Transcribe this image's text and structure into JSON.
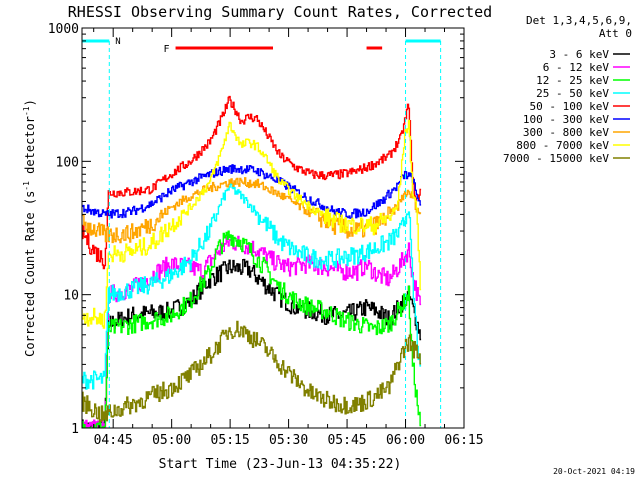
{
  "chart_data": {
    "type": "line",
    "title": "RHESSI Observing Summary Count Rates, Corrected",
    "xlabel": "Start Time (23-Jun-13 04:35:22)",
    "ylabel_main": "Corrected Count Rate (s",
    "ylabel_sup1": "-1",
    "ylabel_mid": " detector",
    "ylabel_sup2": "-1",
    "ylabel_end": ")",
    "y_scale": "log",
    "ylim": [
      1,
      1000
    ],
    "xlim": [
      "04:37:00",
      "06:15:00"
    ],
    "x_ticks": [
      "04:45",
      "05:00",
      "05:15",
      "05:30",
      "05:45",
      "06:00",
      "06:15"
    ],
    "x_tick_minutes": [
      285,
      300,
      315,
      330,
      345,
      360,
      375
    ],
    "x_range_minutes": [
      277,
      375
    ],
    "y_ticks": [
      "1",
      "10",
      "100",
      "1000"
    ],
    "y_tick_values": [
      1,
      10,
      100,
      1000
    ],
    "legend_header": [
      "Det 1,3,4,5,6,9,",
      "Att 0"
    ],
    "legend_placement": "right",
    "flags": {
      "N_label": "N",
      "F_label": "F",
      "night_color": "#00ffff",
      "flare_color": "#ff0000",
      "night_intervals": [
        [
          "04:35",
          "04:44"
        ],
        [
          "06:00",
          "06:09"
        ]
      ],
      "flare_intervals": [
        [
          "05:01",
          "05:26"
        ],
        [
          "05:50",
          "05:54"
        ]
      ],
      "saa_lines": [
        "04:44",
        "06:00",
        "06:09"
      ]
    },
    "series": [
      {
        "name": "3 - 6 keV",
        "color": "#000000",
        "x": [
          277,
          283,
          284,
          290,
          300,
          305,
          310,
          315,
          320,
          324,
          328,
          332,
          336,
          340,
          344,
          348,
          350,
          353,
          356,
          359,
          361,
          362,
          364
        ],
        "y": [
          1,
          1,
          6,
          7,
          7.5,
          9,
          13,
          16,
          15.5,
          12,
          9.5,
          8,
          7.5,
          7,
          7,
          7.5,
          8,
          7.5,
          6.5,
          8.5,
          10,
          8,
          5
        ]
      },
      {
        "name": "6 - 12 keV",
        "color": "#ff00ff",
        "x": [
          277,
          283,
          284,
          290,
          295,
          300,
          305,
          308,
          312,
          315,
          318,
          322,
          326,
          330,
          335,
          340,
          344,
          348,
          350,
          353,
          356,
          359,
          361,
          362,
          364
        ],
        "y": [
          1,
          1,
          10,
          11,
          14,
          17,
          16,
          15,
          21,
          25,
          24,
          22,
          18,
          16,
          17,
          16,
          15,
          15,
          17,
          14,
          13,
          17,
          22,
          14,
          8
        ]
      },
      {
        "name": "12 - 25 keV",
        "color": "#00ff00",
        "x": [
          277,
          283,
          284,
          290,
          300,
          305,
          310,
          312,
          315,
          318,
          320,
          324,
          328,
          332,
          336,
          340,
          344,
          348,
          352,
          356,
          359,
          361,
          362,
          364
        ],
        "y": [
          1,
          1,
          5.5,
          6,
          7,
          9,
          15,
          22,
          28,
          25,
          22,
          16,
          11,
          9,
          8,
          7.5,
          6.5,
          6,
          5.5,
          6,
          8,
          10,
          3,
          1
        ]
      },
      {
        "name": "25 - 50 keV",
        "color": "#00ffff",
        "x": [
          277,
          280,
          283,
          284,
          290,
          295,
          300,
          305,
          310,
          313,
          315,
          318,
          320,
          324,
          328,
          332,
          336,
          340,
          344,
          348,
          352,
          356,
          359,
          361,
          362,
          364
        ],
        "y": [
          2.3,
          2.3,
          2.3,
          10,
          11,
          12,
          14,
          18,
          30,
          50,
          65,
          55,
          48,
          35,
          25,
          21,
          19,
          18,
          19,
          20,
          22,
          25,
          30,
          45,
          12,
          2.5
        ]
      },
      {
        "name": "50 - 100 keV",
        "color": "#ff0000",
        "x": [
          277,
          280,
          283,
          284,
          290,
          295,
          300,
          305,
          310,
          313,
          315,
          317,
          318,
          320,
          322,
          324,
          328,
          332,
          336,
          340,
          344,
          348,
          352,
          356,
          359,
          360,
          361,
          362,
          363,
          364
        ],
        "y": [
          30,
          22,
          18,
          58,
          59,
          62,
          80,
          100,
          140,
          210,
          290,
          230,
          200,
          215,
          210,
          170,
          110,
          90,
          80,
          78,
          80,
          85,
          95,
          110,
          150,
          200,
          270,
          70,
          50,
          60
        ]
      },
      {
        "name": "100 - 300 keV",
        "color": "#0000ff",
        "x": [
          277,
          283,
          284,
          290,
          295,
          300,
          305,
          310,
          315,
          318,
          322,
          326,
          330,
          334,
          338,
          342,
          346,
          350,
          354,
          358,
          360,
          362,
          363,
          364
        ],
        "y": [
          45,
          40,
          40,
          42,
          48,
          60,
          70,
          80,
          88,
          88,
          85,
          75,
          65,
          55,
          48,
          42,
          40,
          42,
          50,
          65,
          80,
          75,
          55,
          50
        ]
      },
      {
        "name": "300 - 800 keV",
        "color": "#ffa500",
        "x": [
          277,
          283,
          284,
          290,
          295,
          300,
          305,
          310,
          315,
          318,
          322,
          326,
          330,
          334,
          338,
          342,
          346,
          350,
          354,
          358,
          360,
          362,
          363,
          364
        ],
        "y": [
          35,
          28,
          28,
          29,
          34,
          45,
          55,
          63,
          70,
          70,
          68,
          60,
          52,
          44,
          38,
          33,
          30,
          31,
          35,
          45,
          58,
          55,
          45,
          40
        ]
      },
      {
        "name": "800 - 7000 keV",
        "color": "#ffff00",
        "x": [
          277,
          283,
          284,
          290,
          295,
          300,
          305,
          310,
          313,
          315,
          317,
          318,
          320,
          322,
          324,
          328,
          332,
          336,
          340,
          344,
          348,
          352,
          356,
          358,
          359,
          360,
          361,
          362,
          363,
          364
        ],
        "y": [
          7,
          6.5,
          20,
          21,
          24,
          33,
          45,
          70,
          120,
          190,
          150,
          130,
          140,
          130,
          110,
          70,
          55,
          45,
          38,
          34,
          33,
          33,
          38,
          45,
          80,
          160,
          190,
          60,
          45,
          12
        ]
      },
      {
        "name": "7000 - 15000 keV",
        "color": "#808000",
        "x": [
          277,
          283,
          284,
          290,
          300,
          305,
          310,
          313,
          315,
          318,
          320,
          324,
          328,
          332,
          336,
          340,
          344,
          348,
          352,
          356,
          359,
          361,
          362,
          364
        ],
        "y": [
          1.6,
          1.2,
          1.3,
          1.5,
          2,
          2.5,
          3.5,
          4.5,
          5.5,
          5.5,
          5,
          4,
          3,
          2.3,
          1.8,
          1.6,
          1.5,
          1.5,
          1.7,
          2,
          3.5,
          4.5,
          4,
          3.5
        ]
      }
    ]
  },
  "footer_timestamp": "20-Oct-2021 04:19"
}
